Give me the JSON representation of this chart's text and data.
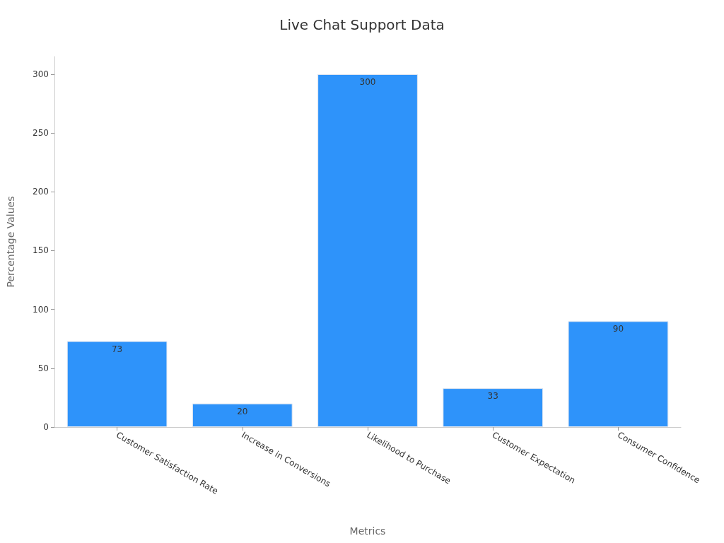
{
  "chart_data": {
    "type": "bar",
    "title": "Live Chat Support Data",
    "xlabel": "Metrics",
    "ylabel": "Percentage Values",
    "categories": [
      "Customer Satisfaction Rate",
      "Increase in Conversions",
      "Likelihood to Purchase",
      "Customer Expectation",
      "Consumer Confidence"
    ],
    "values": [
      73,
      20,
      300,
      33,
      90
    ],
    "color": "#2e93fa",
    "ylim": [
      0,
      315
    ],
    "yticks": [
      0,
      50,
      100,
      150,
      200,
      250,
      300
    ],
    "grid": false,
    "data_labels": true
  }
}
